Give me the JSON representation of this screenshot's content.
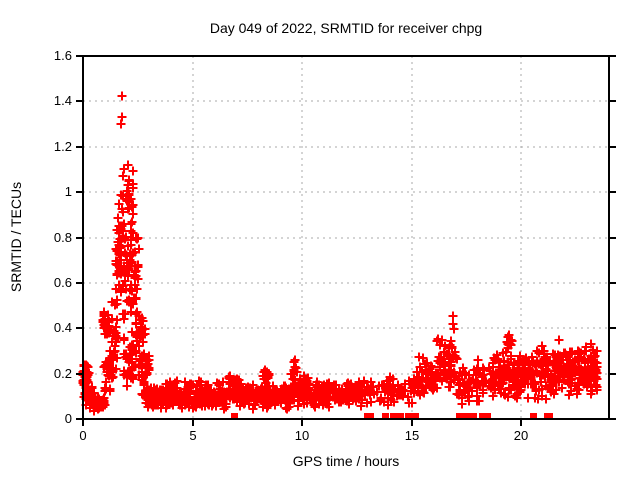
{
  "chart_data": {
    "type": "scatter",
    "title": "Day 049 of 2022, SRMTID for receiver chpg",
    "xlabel": "GPS time / hours",
    "ylabel": "SRMTID / TECUs",
    "xlim": [
      0,
      24
    ],
    "ylim": [
      0,
      1.6
    ],
    "xtick_values": [
      0,
      5,
      10,
      15,
      20
    ],
    "xtick_labels": [
      "0",
      "5",
      "10",
      "15",
      "20"
    ],
    "ytick_values": [
      0,
      0.2,
      0.4,
      0.6,
      0.8,
      1.0,
      1.2,
      1.4,
      1.6
    ],
    "ytick_labels": [
      "0",
      "0.2",
      "0.4",
      "0.6",
      "0.8",
      "1",
      "1.2",
      "1.4",
      "1.6"
    ],
    "grid": true,
    "legend": "none",
    "marker": "plus",
    "marker_color": "#ff0000",
    "grid_color": "#aaaaaa",
    "axis_color": "#000000",
    "background_color": "#ffffff",
    "peak_value": 1.425,
    "peak_time_hours": 1.78,
    "notable_points": [
      [
        0.98,
        0.47
      ],
      [
        1.02,
        0.44
      ],
      [
        1.05,
        0.41
      ],
      [
        1.75,
        1.3
      ],
      [
        1.77,
        1.33
      ],
      [
        1.78,
        1.425
      ],
      [
        1.83,
        1.07
      ],
      [
        1.88,
        1.1
      ],
      [
        1.95,
        0.97
      ],
      [
        2.05,
        1.12
      ],
      [
        2.08,
        1.05
      ],
      [
        2.1,
        0.99
      ],
      [
        2.12,
        0.93
      ],
      [
        1.58,
        0.78
      ],
      [
        1.62,
        0.85
      ],
      [
        2.2,
        0.86
      ],
      [
        2.3,
        0.82
      ],
      [
        2.45,
        0.8
      ],
      [
        16.88,
        0.42
      ],
      [
        16.9,
        0.455
      ],
      [
        16.92,
        0.395
      ],
      [
        19.45,
        0.37
      ],
      [
        21.7,
        0.35
      ],
      [
        23.2,
        0.33
      ],
      [
        8.3,
        0.215
      ],
      [
        9.68,
        0.262
      ]
    ],
    "zero_flag_points_x": [
      6.9,
      12.95,
      13.08,
      13.8,
      14.15,
      14.38,
      14.48,
      14.85,
      15.15,
      17.15,
      17.22,
      17.45,
      17.55,
      17.78,
      18.2,
      18.45,
      20.55,
      21.15,
      21.25
    ],
    "band_segments": [
      [
        0.0,
        0.3,
        35,
        0.13,
        0.26
      ],
      [
        0.05,
        0.5,
        30,
        0.06,
        0.15
      ],
      [
        0.3,
        1.0,
        55,
        0.035,
        0.11
      ],
      [
        0.9,
        1.2,
        28,
        0.36,
        0.48
      ],
      [
        0.95,
        1.35,
        30,
        0.1,
        0.32
      ],
      [
        1.3,
        1.6,
        28,
        0.14,
        0.55
      ],
      [
        1.45,
        1.75,
        22,
        0.5,
        0.85
      ],
      [
        1.6,
        1.95,
        24,
        0.6,
        1.05
      ],
      [
        1.8,
        2.25,
        40,
        0.35,
        0.95
      ],
      [
        1.85,
        2.35,
        35,
        0.13,
        0.4
      ],
      [
        2.0,
        2.3,
        16,
        0.8,
        1.12
      ],
      [
        2.2,
        2.55,
        22,
        0.45,
        0.85
      ],
      [
        2.4,
        2.75,
        24,
        0.18,
        0.55
      ],
      [
        2.55,
        3.0,
        35,
        0.06,
        0.33
      ],
      [
        2.6,
        2.85,
        10,
        0.3,
        0.45
      ],
      [
        2.85,
        3.35,
        40,
        0.04,
        0.14
      ],
      [
        3.3,
        6.55,
        210,
        0.035,
        0.145
      ],
      [
        3.6,
        6.4,
        30,
        0.12,
        0.185
      ],
      [
        6.55,
        7.3,
        55,
        0.05,
        0.21
      ],
      [
        7.3,
        9.45,
        140,
        0.04,
        0.16
      ],
      [
        8.2,
        8.5,
        10,
        0.14,
        0.225
      ],
      [
        9.45,
        10.35,
        65,
        0.055,
        0.21
      ],
      [
        9.6,
        9.8,
        6,
        0.19,
        0.265
      ],
      [
        10.35,
        12.3,
        125,
        0.05,
        0.17
      ],
      [
        12.3,
        13.15,
        45,
        0.05,
        0.19
      ],
      [
        13.15,
        15.25,
        60,
        0.055,
        0.2
      ],
      [
        15.25,
        16.15,
        55,
        0.08,
        0.28
      ],
      [
        16.15,
        17.1,
        65,
        0.1,
        0.37
      ],
      [
        17.1,
        18.6,
        65,
        0.05,
        0.27
      ],
      [
        18.6,
        20.6,
        140,
        0.08,
        0.31
      ],
      [
        19.2,
        19.6,
        12,
        0.28,
        0.38
      ],
      [
        20.6,
        21.6,
        75,
        0.08,
        0.33
      ],
      [
        21.6,
        23.05,
        115,
        0.1,
        0.33
      ],
      [
        23.05,
        23.45,
        45,
        0.08,
        0.32
      ]
    ],
    "render_seed": 20220049
  }
}
